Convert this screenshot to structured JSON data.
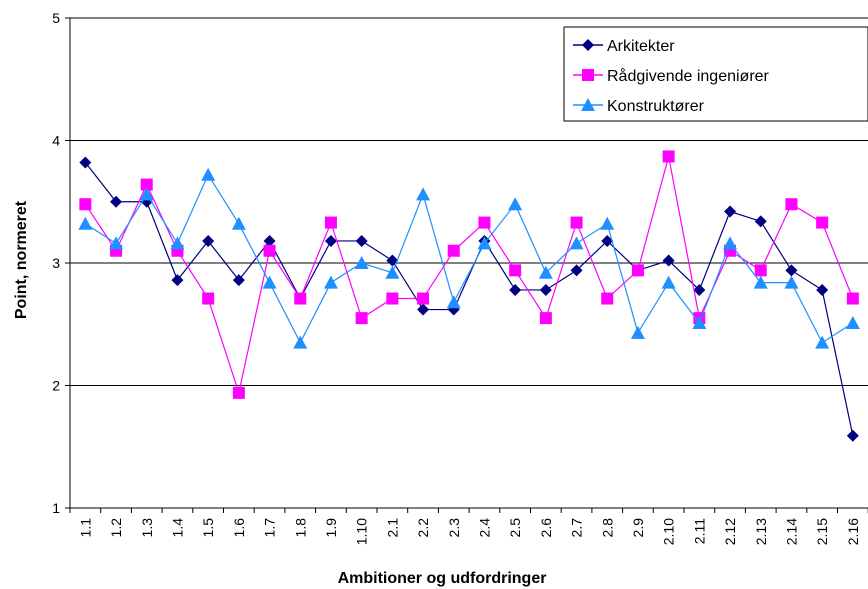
{
  "chart_data": {
    "type": "line",
    "title": "",
    "xlabel": "Ambitioner og udfordringer",
    "ylabel": "Point, normeret",
    "ylim": [
      1,
      5
    ],
    "yticks": [
      "1",
      "2",
      "3",
      "4",
      "5"
    ],
    "grid": "horizontal",
    "legend_position": "top-right",
    "categories": [
      "1.1",
      "1.2",
      "1.3",
      "1.4",
      "1.5",
      "1.6",
      "1.7",
      "1.8",
      "1.9",
      "1.10",
      "2.1",
      "2.2",
      "2.3",
      "2.4",
      "2.5",
      "2.6",
      "2.7",
      "2.8",
      "2.9",
      "2.10",
      "2.11",
      "2.12",
      "2.13",
      "2.14",
      "2.15",
      "2.16"
    ],
    "series": [
      {
        "name": "Arkitekter",
        "color": "#000080",
        "marker": "diamond",
        "values": [
          3.82,
          3.5,
          3.5,
          2.86,
          3.18,
          2.86,
          3.18,
          2.71,
          3.18,
          3.18,
          3.02,
          2.62,
          2.62,
          3.18,
          2.78,
          2.78,
          2.94,
          3.18,
          2.94,
          3.02,
          2.78,
          3.42,
          3.34,
          2.94,
          2.78,
          1.59
        ]
      },
      {
        "name": "Rådgivende ingeniører",
        "color": "#FF00FF",
        "marker": "square",
        "values": [
          3.48,
          3.1,
          3.64,
          3.1,
          2.71,
          1.94,
          3.1,
          2.71,
          3.33,
          2.55,
          2.71,
          2.71,
          3.1,
          3.33,
          2.94,
          2.55,
          3.33,
          2.71,
          2.94,
          3.87,
          2.55,
          3.1,
          2.94,
          3.48,
          3.33,
          2.71
        ]
      },
      {
        "name": "Konstruktører",
        "color": "#1E90FF",
        "marker": "triangle",
        "values": [
          3.32,
          3.16,
          3.56,
          3.16,
          3.72,
          3.32,
          2.84,
          2.35,
          2.84,
          3.0,
          2.92,
          3.56,
          2.68,
          3.16,
          3.48,
          2.92,
          3.16,
          3.32,
          2.43,
          2.84,
          2.51,
          3.16,
          2.84,
          2.84,
          2.35,
          2.51
        ]
      }
    ]
  }
}
